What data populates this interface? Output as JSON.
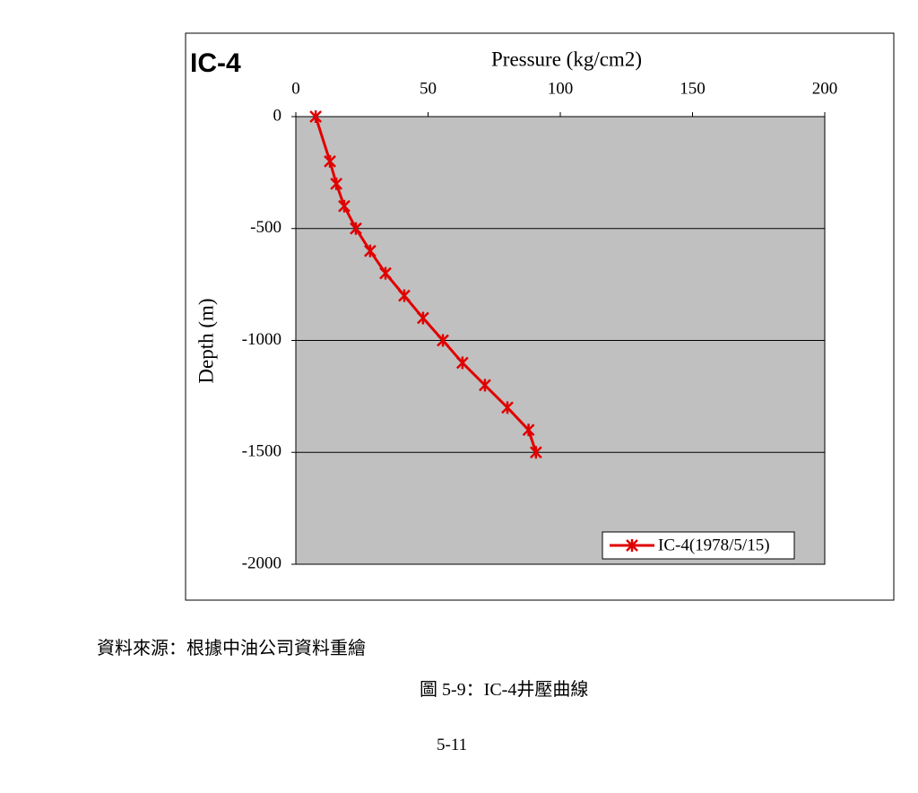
{
  "chart_data": {
    "type": "line",
    "title": "IC-4",
    "xlabel": "Pressure (kg/cm2)",
    "ylabel": "Depth (m)",
    "x": [
      7.5,
      12.9,
      15.3,
      18.3,
      22.7,
      28.1,
      33.9,
      41,
      48.1,
      55.6,
      63,
      71.5,
      80,
      88,
      90.8
    ],
    "series": [
      {
        "name": "IC-4(1978/5/15)",
        "color": "#e00000",
        "values": [
          0,
          -200,
          -300,
          -400,
          -500,
          -600,
          -700,
          -800,
          -900,
          -1000,
          -1100,
          -1200,
          -1300,
          -1400,
          -1500
        ]
      }
    ],
    "xlim": [
      0,
      200
    ],
    "xticks": [
      0,
      50,
      100,
      150,
      200
    ],
    "ylim": [
      -2000,
      0
    ],
    "yticks": [
      0,
      -500,
      -1000,
      -1500,
      -2000
    ],
    "grid": true,
    "legend": "lower right",
    "plot_background": "#c0c0c0"
  },
  "source": "資料來源：根據中油公司資料重繪",
  "caption": "圖 5-9：IC-4井壓曲線",
  "page_number": "5-11"
}
